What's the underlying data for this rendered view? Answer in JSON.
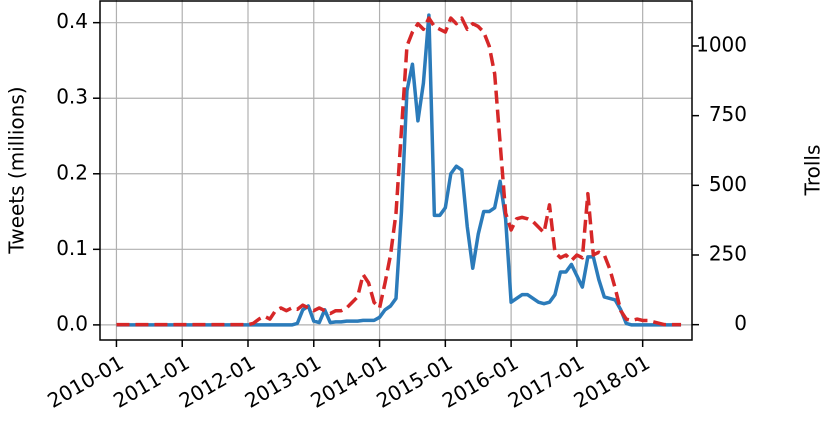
{
  "chart_data": {
    "type": "line",
    "ylabel": "Tweets (millions)",
    "y2label": "Trolls",
    "x": [
      "2010-01",
      "2010-02",
      "2010-03",
      "2010-04",
      "2010-05",
      "2010-06",
      "2010-07",
      "2010-08",
      "2010-09",
      "2010-10",
      "2010-11",
      "2010-12",
      "2011-01",
      "2011-02",
      "2011-03",
      "2011-04",
      "2011-05",
      "2011-06",
      "2011-07",
      "2011-08",
      "2011-09",
      "2011-10",
      "2011-11",
      "2011-12",
      "2012-01",
      "2012-02",
      "2012-03",
      "2012-04",
      "2012-05",
      "2012-06",
      "2012-07",
      "2012-08",
      "2012-09",
      "2012-10",
      "2012-11",
      "2012-12",
      "2013-01",
      "2013-02",
      "2013-03",
      "2013-04",
      "2013-05",
      "2013-06",
      "2013-07",
      "2013-08",
      "2013-09",
      "2013-10",
      "2013-11",
      "2013-12",
      "2014-01",
      "2014-02",
      "2014-03",
      "2014-04",
      "2014-05",
      "2014-06",
      "2014-07",
      "2014-08",
      "2014-09",
      "2014-10",
      "2014-11",
      "2014-12",
      "2015-01",
      "2015-02",
      "2015-03",
      "2015-04",
      "2015-05",
      "2015-06",
      "2015-07",
      "2015-08",
      "2015-09",
      "2015-10",
      "2015-11",
      "2015-12",
      "2016-01",
      "2016-02",
      "2016-03",
      "2016-04",
      "2016-05",
      "2016-06",
      "2016-07",
      "2016-08",
      "2016-09",
      "2016-10",
      "2016-11",
      "2016-12",
      "2017-01",
      "2017-02",
      "2017-03",
      "2017-04",
      "2017-05",
      "2017-06",
      "2017-07",
      "2017-08",
      "2017-09",
      "2017-10",
      "2017-11",
      "2017-12",
      "2018-01",
      "2018-02",
      "2018-03",
      "2018-04",
      "2018-05",
      "2018-06",
      "2018-07",
      "2018-08"
    ],
    "series": [
      {
        "color": "#2b7bba",
        "axis": "y",
        "dash": false,
        "values": [
          0,
          0,
          0,
          0,
          0,
          0,
          0,
          0,
          0,
          0,
          0,
          0,
          0,
          0,
          0,
          0,
          0,
          0,
          0,
          0,
          0,
          0,
          0,
          0,
          0,
          0,
          0,
          0,
          0,
          0,
          0,
          0,
          0,
          0.002,
          0.02,
          0.025,
          0.005,
          0.003,
          0.02,
          0.003,
          0.004,
          0.004,
          0.005,
          0.005,
          0.005,
          0.006,
          0.006,
          0.006,
          0.01,
          0.02,
          0.025,
          0.035,
          0.15,
          0.31,
          0.345,
          0.27,
          0.32,
          0.41,
          0.145,
          0.145,
          0.155,
          0.2,
          0.21,
          0.205,
          0.13,
          0.075,
          0.12,
          0.15,
          0.15,
          0.155,
          0.19,
          0.14,
          0.03,
          0.035,
          0.04,
          0.04,
          0.035,
          0.03,
          0.028,
          0.03,
          0.04,
          0.07,
          0.07,
          0.08,
          0.065,
          0.05,
          0.09,
          0.09,
          0.06,
          0.037,
          0.035,
          0.033,
          0.02,
          0.002,
          0,
          0,
          0,
          0,
          0,
          0,
          0,
          0,
          0,
          0
        ]
      },
      {
        "color": "#d62728",
        "axis": "y2",
        "dash": true,
        "values": [
          0,
          0,
          0,
          0,
          0,
          0,
          0,
          0,
          0,
          0,
          0,
          0,
          0,
          0,
          0,
          0,
          0,
          0,
          0,
          0,
          0,
          0,
          0,
          0,
          0,
          5,
          20,
          30,
          20,
          50,
          60,
          50,
          60,
          55,
          70,
          60,
          50,
          60,
          50,
          40,
          50,
          50,
          60,
          80,
          100,
          180,
          150,
          80,
          60,
          150,
          250,
          400,
          700,
          1000,
          1050,
          1080,
          1060,
          1100,
          1070,
          1060,
          1050,
          1100,
          1080,
          1100,
          1060,
          1080,
          1070,
          1050,
          1000,
          900,
          650,
          400,
          340,
          380,
          385,
          380,
          370,
          350,
          330,
          430,
          260,
          240,
          250,
          230,
          250,
          240,
          470,
          250,
          260,
          250,
          200,
          130,
          50,
          20,
          15,
          20,
          15,
          15,
          10,
          5,
          0,
          0,
          0,
          0
        ]
      }
    ],
    "xlim": [
      "2009-10",
      "2018-10"
    ],
    "xticks": [
      "2010-01",
      "2011-01",
      "2012-01",
      "2013-01",
      "2014-01",
      "2015-01",
      "2016-01",
      "2017-01",
      "2018-01"
    ],
    "ylim": [
      -0.02,
      0.43
    ],
    "yticks": [
      {
        "value": 0,
        "label": "0.0"
      },
      0.1,
      0.2,
      0.3,
      0.4
    ],
    "y2lim": [
      -55,
      1165
    ],
    "y2ticks": [
      0,
      250,
      500,
      750,
      1000
    ],
    "grid": true
  }
}
